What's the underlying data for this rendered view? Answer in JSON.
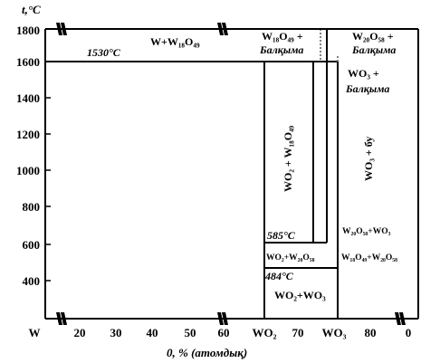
{
  "axes": {
    "y_title": "t,°C",
    "x_title": "0, % (атомдық)",
    "y_ticks": [
      "1800",
      "1600",
      "1400",
      "1200",
      "1000",
      "800",
      "600",
      "400"
    ],
    "x_ticks": [
      "W",
      "20",
      "30",
      "40",
      "50",
      "60",
      "WO₂",
      "70",
      "WO₃",
      "80",
      "0"
    ]
  },
  "regions": {
    "w_w18": "W+W₁₈O₄₉",
    "w18_melt_1": "W₁₈O₄₉ +",
    "w18_melt_2": "Балқыма",
    "w20_melt_1": "W₂₀O₅₈ +",
    "w20_melt_2": "Балқыма",
    "wo3_melt_1": "WO₃ +",
    "wo3_melt_2": "Балқыма",
    "wo2_w18": "WO₂ + W₁₈O₄₉",
    "wo3_vapor": "WO₃ + бу",
    "w20_wo3": "W₂₀O₅₈+WO₃",
    "w18_w20": "W₁₈O₄₉+W₂₀O₅₈",
    "wo2_w20": "WO₂+W₂₀O₅₈",
    "wo2_wo3": "WO₂+WO₃"
  },
  "temperatures": {
    "t1530": "1530°C",
    "t585": "585°C",
    "t484": "484°C"
  }
}
